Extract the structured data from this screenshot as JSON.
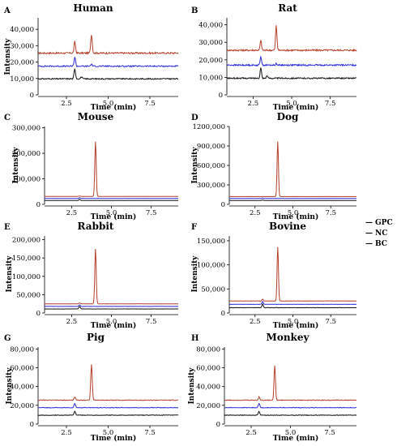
{
  "legend": [
    {
      "name": "GPC",
      "color": "#b5402a"
    },
    {
      "name": "NC",
      "color": "#2b2bd9"
    },
    {
      "name": "BC",
      "color": "#111111"
    }
  ],
  "colors": {
    "GPC": "#b5402a",
    "NC": "#2b2bd9",
    "BC": "#111111",
    "axis": "#000000"
  },
  "chart_data": [
    {
      "panel": "A",
      "title": "Human",
      "type": "line",
      "xlabel": "Time (min)",
      "ylabel": "Intensity",
      "xlim": [
        0.8,
        9.2
      ],
      "ylim": [
        0,
        47000
      ],
      "xticks": [
        2.5,
        5.0,
        7.5
      ],
      "xtick_labels": [
        "2.5",
        "5.0",
        "7.5"
      ],
      "yticks": [
        0,
        10000,
        20000,
        30000,
        40000
      ],
      "ytick_labels": [
        "0",
        "10,000",
        "20,000",
        "30,000",
        "40,000"
      ],
      "series": [
        {
          "name": "GPC",
          "baseline": 25500,
          "peaks": [
            [
              3.0,
              7000
            ],
            [
              4.0,
              11500
            ]
          ],
          "noise": 500
        },
        {
          "name": "NC",
          "baseline": 17500,
          "peaks": [
            [
              3.0,
              5500
            ],
            [
              4.0,
              1200
            ]
          ],
          "noise": 400
        },
        {
          "name": "BC",
          "baseline": 9800,
          "peaks": [
            [
              3.0,
              6000
            ],
            [
              3.4,
              1200
            ]
          ],
          "noise": 350
        }
      ]
    },
    {
      "panel": "B",
      "title": "Rat",
      "type": "line",
      "xlabel": "Time (min)",
      "ylabel": "Intensity",
      "xlim": [
        0.8,
        9.2
      ],
      "ylim": [
        0,
        44000
      ],
      "xticks": [
        2.5,
        5.0,
        7.5
      ],
      "xtick_labels": [
        "2.5",
        "5.0",
        "7.5"
      ],
      "yticks": [
        0,
        10000,
        20000,
        30000,
        40000
      ],
      "ytick_labels": [
        "0",
        "10,000",
        "20,000",
        "30,000",
        "40,000"
      ],
      "series": [
        {
          "name": "GPC",
          "baseline": 25500,
          "peaks": [
            [
              3.0,
              5500
            ],
            [
              4.0,
              14000
            ]
          ],
          "noise": 450
        },
        {
          "name": "NC",
          "baseline": 17000,
          "peaks": [
            [
              3.0,
              5000
            ],
            [
              4.0,
              900
            ]
          ],
          "noise": 400
        },
        {
          "name": "BC",
          "baseline": 9500,
          "peaks": [
            [
              3.0,
              6000
            ],
            [
              3.4,
              1500
            ]
          ],
          "noise": 350
        }
      ]
    },
    {
      "panel": "C",
      "title": "Mouse",
      "type": "line",
      "xlabel": "Time (min)",
      "ylabel": "Intensity",
      "xlim": [
        0.8,
        9.2
      ],
      "ylim": [
        0,
        305000
      ],
      "xticks": [
        2.5,
        5.0,
        7.5
      ],
      "xtick_labels": [
        "2.5",
        "5.0",
        "7.5"
      ],
      "yticks": [
        0,
        100000,
        200000,
        300000
      ],
      "ytick_labels": [
        "0",
        "100,000",
        "200,000",
        "300,000"
      ],
      "series": [
        {
          "name": "GPC",
          "baseline": 31000,
          "peaks": [
            [
              4.0,
              215000
            ],
            [
              3.0,
              2000
            ]
          ],
          "noise": 300
        },
        {
          "name": "NC",
          "baseline": 23000,
          "peaks": [
            [
              3.0,
              3000
            ]
          ],
          "noise": 250
        },
        {
          "name": "BC",
          "baseline": 15000,
          "peaks": [
            [
              3.0,
              5000
            ]
          ],
          "noise": 250
        }
      ]
    },
    {
      "panel": "D",
      "title": "Dog",
      "type": "line",
      "xlabel": "Time (min)",
      "ylabel": "Intensity",
      "xlim": [
        0.8,
        9.2
      ],
      "ylim": [
        0,
        1200000
      ],
      "xticks": [
        2.5,
        5.0,
        7.5
      ],
      "xtick_labels": [
        "2.5",
        "5.0",
        "7.5"
      ],
      "yticks": [
        0,
        300000,
        600000,
        900000,
        1200000
      ],
      "ytick_labels": [
        "0",
        "300,000",
        "600,000",
        "900,000",
        "1200,000"
      ],
      "series": [
        {
          "name": "GPC",
          "baseline": 120000,
          "peaks": [
            [
              4.0,
              850000
            ]
          ],
          "noise": 800
        },
        {
          "name": "NC",
          "baseline": 90000,
          "peaks": [
            [
              3.0,
              6000
            ]
          ],
          "noise": 600
        },
        {
          "name": "BC",
          "baseline": 60000,
          "peaks": [
            [
              3.0,
              8000
            ]
          ],
          "noise": 600
        }
      ]
    },
    {
      "panel": "E",
      "title": "Rabbit",
      "type": "line",
      "xlabel": "Time (min)",
      "ylabel": "Intensity",
      "xlim": [
        0.8,
        9.2
      ],
      "ylim": [
        0,
        210000
      ],
      "xticks": [
        2.5,
        5.0,
        7.5
      ],
      "xtick_labels": [
        "2.5",
        "5.0",
        "7.5"
      ],
      "yticks": [
        0,
        50000,
        100000,
        150000,
        200000
      ],
      "ytick_labels": [
        "0",
        "50,000",
        "100,000",
        "150,000",
        "200,000"
      ],
      "series": [
        {
          "name": "GPC",
          "baseline": 25000,
          "peaks": [
            [
              4.0,
              150000
            ],
            [
              3.0,
              2500
            ]
          ],
          "noise": 300
        },
        {
          "name": "NC",
          "baseline": 18000,
          "peaks": [
            [
              3.0,
              4000
            ]
          ],
          "noise": 250
        },
        {
          "name": "BC",
          "baseline": 11000,
          "peaks": [
            [
              3.0,
              7000
            ]
          ],
          "noise": 250
        }
      ]
    },
    {
      "panel": "F",
      "title": "Bovine",
      "type": "line",
      "xlabel": "Time (min)",
      "ylabel": "Intensity",
      "xlim": [
        0.8,
        9.2
      ],
      "ylim": [
        0,
        160000
      ],
      "xticks": [
        2.5,
        5.0,
        7.5
      ],
      "xtick_labels": [
        "2.5",
        "5.0",
        "7.5"
      ],
      "yticks": [
        0,
        50000,
        100000,
        150000
      ],
      "ytick_labels": [
        "0",
        "50,000",
        "100,000",
        "150,000"
      ],
      "series": [
        {
          "name": "GPC",
          "baseline": 25000,
          "peaks": [
            [
              4.0,
              112000
            ],
            [
              3.0,
              4000
            ]
          ],
          "noise": 300
        },
        {
          "name": "NC",
          "baseline": 18000,
          "peaks": [
            [
              3.0,
              6000
            ]
          ],
          "noise": 250
        },
        {
          "name": "BC",
          "baseline": 11000,
          "peaks": [
            [
              3.0,
              7500
            ]
          ],
          "noise": 250
        }
      ]
    },
    {
      "panel": "G",
      "title": "Pig",
      "type": "line",
      "xlabel": "Time (min)",
      "ylabel": "Intensity",
      "xlim": [
        0.8,
        9.2
      ],
      "ylim": [
        0,
        82000
      ],
      "xticks": [
        2.5,
        5.0,
        7.5
      ],
      "xtick_labels": [
        "2.5",
        "5.0",
        "7.5"
      ],
      "yticks": [
        0,
        20000,
        40000,
        60000,
        80000
      ],
      "ytick_labels": [
        "0",
        "20,000",
        "40,000",
        "60,000",
        "80,000"
      ],
      "series": [
        {
          "name": "GPC",
          "baseline": 25500,
          "peaks": [
            [
              3.0,
              3500
            ],
            [
              4.0,
              38000
            ]
          ],
          "noise": 350
        },
        {
          "name": "NC",
          "baseline": 17500,
          "peaks": [
            [
              3.0,
              4500
            ]
          ],
          "noise": 300
        },
        {
          "name": "BC",
          "baseline": 9500,
          "peaks": [
            [
              3.0,
              4000
            ]
          ],
          "noise": 300
        }
      ]
    },
    {
      "panel": "H",
      "title": "Monkey",
      "type": "line",
      "xlabel": "Time (min)",
      "ylabel": "Intensity",
      "xlim": [
        0.8,
        9.2
      ],
      "ylim": [
        0,
        82000
      ],
      "xticks": [
        2.5,
        5.0,
        7.5
      ],
      "xtick_labels": [
        "2.5",
        "5.0",
        "7.5"
      ],
      "yticks": [
        0,
        20000,
        40000,
        60000,
        80000
      ],
      "ytick_labels": [
        "0",
        "20,000",
        "40,000",
        "60,000",
        "80,000"
      ],
      "series": [
        {
          "name": "GPC",
          "baseline": 25500,
          "peaks": [
            [
              3.0,
              3500
            ],
            [
              4.0,
              37000
            ]
          ],
          "noise": 350
        },
        {
          "name": "NC",
          "baseline": 17500,
          "peaks": [
            [
              3.0,
              4500
            ]
          ],
          "noise": 300
        },
        {
          "name": "BC",
          "baseline": 9500,
          "peaks": [
            [
              3.0,
              4000
            ]
          ],
          "noise": 300
        }
      ]
    }
  ]
}
